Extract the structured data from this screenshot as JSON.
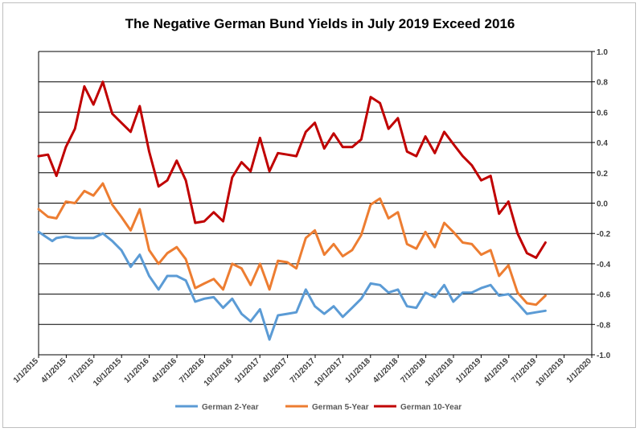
{
  "chart_data": {
    "type": "line",
    "title": "The Negative German Bund Yields in July 2019 Exceed 2016",
    "xlabel": "",
    "ylabel": "",
    "ylim": [
      -1.0,
      1.0
    ],
    "yticks": [
      "1.0",
      "0.8",
      "0.6",
      "0.4",
      "0.2",
      "0.0",
      "-0.2",
      "-0.4",
      "-0.6",
      "-0.8",
      "-1.0"
    ],
    "xticks": [
      "1/1/2015",
      "4/1/2015",
      "7/1/2015",
      "10/1/2015",
      "1/1/2016",
      "4/1/2016",
      "7/1/2016",
      "10/1/2016",
      "1/1/2017",
      "4/1/2017",
      "7/1/2017",
      "10/1/2017",
      "1/1/2018",
      "4/1/2018",
      "7/1/2018",
      "10/1/2018",
      "1/1/2019",
      "4/1/2019",
      "7/1/2019",
      "10/1/2019",
      "1/1/2020"
    ],
    "grid": "horizontal",
    "y_axis_position": "right",
    "legend_position": "bottom",
    "series": [
      {
        "name": "German 2-Year",
        "color": "#5b9bd5",
        "points": [
          [
            "2015-01-01",
            -0.19
          ],
          [
            "2015-02-15",
            -0.25
          ],
          [
            "2015-03-01",
            -0.23
          ],
          [
            "2015-04-01",
            -0.22
          ],
          [
            "2015-05-01",
            -0.23
          ],
          [
            "2015-06-01",
            -0.23
          ],
          [
            "2015-07-01",
            -0.23
          ],
          [
            "2015-08-01",
            -0.2
          ],
          [
            "2015-09-01",
            -0.25
          ],
          [
            "2015-10-01",
            -0.31
          ],
          [
            "2015-11-01",
            -0.42
          ],
          [
            "2015-12-01",
            -0.34
          ],
          [
            "2016-01-01",
            -0.48
          ],
          [
            "2016-02-01",
            -0.57
          ],
          [
            "2016-03-01",
            -0.48
          ],
          [
            "2016-04-01",
            -0.48
          ],
          [
            "2016-05-01",
            -0.51
          ],
          [
            "2016-06-01",
            -0.65
          ],
          [
            "2016-07-01",
            -0.63
          ],
          [
            "2016-08-01",
            -0.62
          ],
          [
            "2016-09-01",
            -0.69
          ],
          [
            "2016-10-01",
            -0.63
          ],
          [
            "2016-11-01",
            -0.73
          ],
          [
            "2016-12-01",
            -0.78
          ],
          [
            "2017-01-01",
            -0.7
          ],
          [
            "2017-02-01",
            -0.9
          ],
          [
            "2017-03-01",
            -0.74
          ],
          [
            "2017-04-01",
            -0.73
          ],
          [
            "2017-05-01",
            -0.72
          ],
          [
            "2017-06-01",
            -0.57
          ],
          [
            "2017-07-01",
            -0.68
          ],
          [
            "2017-08-01",
            -0.73
          ],
          [
            "2017-09-01",
            -0.68
          ],
          [
            "2017-10-01",
            -0.75
          ],
          [
            "2017-11-01",
            -0.69
          ],
          [
            "2017-12-01",
            -0.63
          ],
          [
            "2018-01-01",
            -0.53
          ],
          [
            "2018-02-01",
            -0.54
          ],
          [
            "2018-03-01",
            -0.59
          ],
          [
            "2018-04-01",
            -0.57
          ],
          [
            "2018-05-01",
            -0.68
          ],
          [
            "2018-06-01",
            -0.69
          ],
          [
            "2018-07-01",
            -0.59
          ],
          [
            "2018-08-01",
            -0.62
          ],
          [
            "2018-09-01",
            -0.54
          ],
          [
            "2018-10-01",
            -0.65
          ],
          [
            "2018-11-01",
            -0.59
          ],
          [
            "2018-12-01",
            -0.59
          ],
          [
            "2019-01-01",
            -0.56
          ],
          [
            "2019-02-01",
            -0.54
          ],
          [
            "2019-03-01",
            -0.61
          ],
          [
            "2019-04-01",
            -0.6
          ],
          [
            "2019-05-01",
            -0.66
          ],
          [
            "2019-06-01",
            -0.73
          ],
          [
            "2019-07-01",
            -0.72
          ],
          [
            "2019-08-01",
            -0.71
          ]
        ]
      },
      {
        "name": "German 5-Year",
        "color": "#ed7d31",
        "points": [
          [
            "2015-01-01",
            -0.04
          ],
          [
            "2015-02-01",
            -0.09
          ],
          [
            "2015-03-01",
            -0.1
          ],
          [
            "2015-04-01",
            0.01
          ],
          [
            "2015-05-01",
            0.0
          ],
          [
            "2015-06-01",
            0.08
          ],
          [
            "2015-07-01",
            0.05
          ],
          [
            "2015-08-01",
            0.13
          ],
          [
            "2015-09-01",
            -0.01
          ],
          [
            "2015-10-01",
            -0.09
          ],
          [
            "2015-11-01",
            -0.18
          ],
          [
            "2015-12-01",
            -0.04
          ],
          [
            "2016-01-01",
            -0.31
          ],
          [
            "2016-02-01",
            -0.4
          ],
          [
            "2016-03-01",
            -0.33
          ],
          [
            "2016-04-01",
            -0.29
          ],
          [
            "2016-05-01",
            -0.37
          ],
          [
            "2016-06-01",
            -0.56
          ],
          [
            "2016-07-01",
            -0.53
          ],
          [
            "2016-08-01",
            -0.5
          ],
          [
            "2016-09-01",
            -0.57
          ],
          [
            "2016-10-01",
            -0.4
          ],
          [
            "2016-11-01",
            -0.43
          ],
          [
            "2016-12-01",
            -0.54
          ],
          [
            "2017-01-01",
            -0.4
          ],
          [
            "2017-02-01",
            -0.57
          ],
          [
            "2017-03-01",
            -0.38
          ],
          [
            "2017-04-01",
            -0.39
          ],
          [
            "2017-05-01",
            -0.43
          ],
          [
            "2017-06-01",
            -0.23
          ],
          [
            "2017-07-01",
            -0.18
          ],
          [
            "2017-08-01",
            -0.34
          ],
          [
            "2017-09-01",
            -0.27
          ],
          [
            "2017-10-01",
            -0.35
          ],
          [
            "2017-11-01",
            -0.31
          ],
          [
            "2017-12-01",
            -0.21
          ],
          [
            "2018-01-01",
            -0.01
          ],
          [
            "2018-02-01",
            0.03
          ],
          [
            "2018-03-01",
            -0.1
          ],
          [
            "2018-04-01",
            -0.06
          ],
          [
            "2018-05-01",
            -0.27
          ],
          [
            "2018-06-01",
            -0.3
          ],
          [
            "2018-07-01",
            -0.19
          ],
          [
            "2018-08-01",
            -0.29
          ],
          [
            "2018-09-01",
            -0.13
          ],
          [
            "2018-10-01",
            -0.19
          ],
          [
            "2018-11-01",
            -0.26
          ],
          [
            "2018-12-01",
            -0.27
          ],
          [
            "2019-01-01",
            -0.34
          ],
          [
            "2019-02-01",
            -0.31
          ],
          [
            "2019-03-01",
            -0.48
          ],
          [
            "2019-04-01",
            -0.41
          ],
          [
            "2019-05-01",
            -0.59
          ],
          [
            "2019-06-01",
            -0.66
          ],
          [
            "2019-07-01",
            -0.67
          ],
          [
            "2019-08-01",
            -0.61
          ]
        ]
      },
      {
        "name": "German 10-Year",
        "color": "#c00000",
        "points": [
          [
            "2015-01-01",
            0.31
          ],
          [
            "2015-02-01",
            0.32
          ],
          [
            "2015-03-01",
            0.18
          ],
          [
            "2015-04-01",
            0.37
          ],
          [
            "2015-05-01",
            0.49
          ],
          [
            "2015-06-01",
            0.77
          ],
          [
            "2015-07-01",
            0.65
          ],
          [
            "2015-08-01",
            0.8
          ],
          [
            "2015-09-01",
            0.59
          ],
          [
            "2015-10-01",
            0.53
          ],
          [
            "2015-11-01",
            0.47
          ],
          [
            "2015-12-01",
            0.64
          ],
          [
            "2016-01-01",
            0.34
          ],
          [
            "2016-02-01",
            0.11
          ],
          [
            "2016-03-01",
            0.15
          ],
          [
            "2016-04-01",
            0.28
          ],
          [
            "2016-05-01",
            0.15
          ],
          [
            "2016-06-01",
            -0.13
          ],
          [
            "2016-07-01",
            -0.12
          ],
          [
            "2016-08-01",
            -0.06
          ],
          [
            "2016-09-01",
            -0.12
          ],
          [
            "2016-10-01",
            0.17
          ],
          [
            "2016-11-01",
            0.27
          ],
          [
            "2016-12-01",
            0.21
          ],
          [
            "2017-01-01",
            0.43
          ],
          [
            "2017-02-01",
            0.21
          ],
          [
            "2017-03-01",
            0.33
          ],
          [
            "2017-04-01",
            0.32
          ],
          [
            "2017-05-01",
            0.31
          ],
          [
            "2017-06-01",
            0.47
          ],
          [
            "2017-07-01",
            0.53
          ],
          [
            "2017-08-01",
            0.36
          ],
          [
            "2017-09-01",
            0.46
          ],
          [
            "2017-10-01",
            0.37
          ],
          [
            "2017-11-01",
            0.37
          ],
          [
            "2017-12-01",
            0.42
          ],
          [
            "2018-01-01",
            0.7
          ],
          [
            "2018-02-01",
            0.66
          ],
          [
            "2018-03-01",
            0.49
          ],
          [
            "2018-04-01",
            0.56
          ],
          [
            "2018-05-01",
            0.34
          ],
          [
            "2018-06-01",
            0.31
          ],
          [
            "2018-07-01",
            0.44
          ],
          [
            "2018-08-01",
            0.33
          ],
          [
            "2018-09-01",
            0.47
          ],
          [
            "2018-10-01",
            0.39
          ],
          [
            "2018-11-01",
            0.31
          ],
          [
            "2018-12-01",
            0.25
          ],
          [
            "2019-01-01",
            0.15
          ],
          [
            "2019-02-01",
            0.18
          ],
          [
            "2019-03-01",
            -0.07
          ],
          [
            "2019-04-01",
            0.01
          ],
          [
            "2019-05-01",
            -0.2
          ],
          [
            "2019-06-01",
            -0.33
          ],
          [
            "2019-07-01",
            -0.36
          ],
          [
            "2019-08-01",
            -0.26
          ]
        ]
      }
    ]
  }
}
